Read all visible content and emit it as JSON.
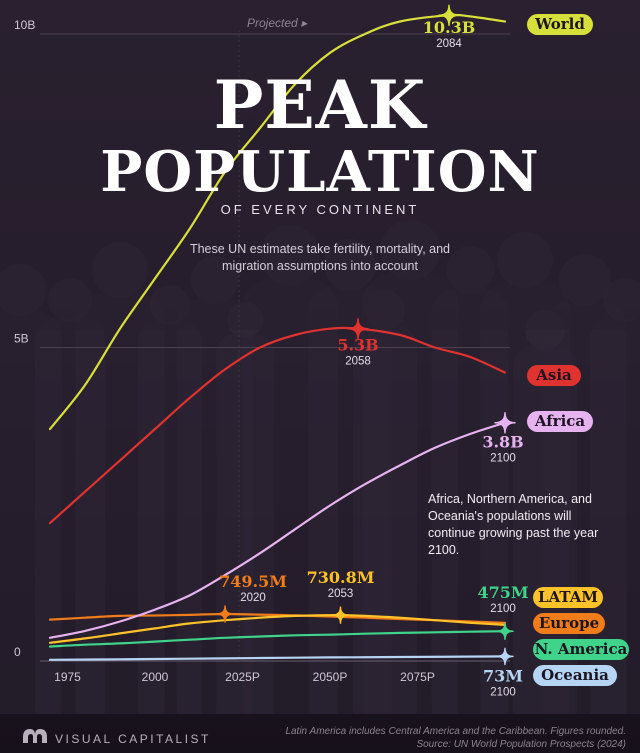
{
  "title": {
    "line1": "PEAK",
    "line2": "POPULATION",
    "line3": "OF EVERY CONTINENT"
  },
  "subtitle": "These UN estimates take fertility, mortality, and migration assumptions into account",
  "projected_label": "Projected ▸",
  "note": "Africa, Northern America, and Oceania's populations will continue growing past the year 2100.",
  "footer": {
    "brand": "VISUAL CAPITALIST",
    "source_note": "Latin America includes Central America and the Caribbean. Figures rounded.",
    "source": "Source: UN World Population Prospects (2024)"
  },
  "chart_data": {
    "type": "line",
    "x_ticks": [
      "1975",
      "2000",
      "2025P",
      "2050P",
      "2075P"
    ],
    "x_tick_values": [
      1975,
      2000,
      2025,
      2050,
      2075
    ],
    "y_ticks": [
      "0",
      "5B",
      "10B"
    ],
    "y_tick_values": [
      0,
      5,
      10
    ],
    "y_unit": "billions",
    "xlim": [
      1970,
      2100
    ],
    "ylim": [
      0,
      10.4
    ],
    "projection_start": 2024,
    "grid": "horizontal",
    "series": [
      {
        "name": "World",
        "color": "#d7e03a",
        "points": [
          [
            1970,
            3.7
          ],
          [
            1980,
            4.4
          ],
          [
            1990,
            5.3
          ],
          [
            2000,
            6.1
          ],
          [
            2010,
            6.9
          ],
          [
            2020,
            7.8
          ],
          [
            2030,
            8.5
          ],
          [
            2040,
            9.2
          ],
          [
            2050,
            9.7
          ],
          [
            2060,
            10.0
          ],
          [
            2070,
            10.2
          ],
          [
            2084,
            10.3
          ],
          [
            2090,
            10.28
          ],
          [
            2100,
            10.2
          ]
        ],
        "peak": {
          "value": "10.3B",
          "year": "2084",
          "x": 2084,
          "y": 10.3
        }
      },
      {
        "name": "Asia",
        "color": "#e0322f",
        "points": [
          [
            1970,
            2.2
          ],
          [
            1980,
            2.7
          ],
          [
            1990,
            3.2
          ],
          [
            2000,
            3.7
          ],
          [
            2010,
            4.2
          ],
          [
            2020,
            4.65
          ],
          [
            2030,
            5.0
          ],
          [
            2040,
            5.2
          ],
          [
            2050,
            5.3
          ],
          [
            2058,
            5.3
          ],
          [
            2070,
            5.2
          ],
          [
            2080,
            5.0
          ],
          [
            2090,
            4.85
          ],
          [
            2100,
            4.6
          ]
        ],
        "peak": {
          "value": "5.3B",
          "year": "2058",
          "x": 2058,
          "y": 5.3
        }
      },
      {
        "name": "Africa",
        "color": "#e6b3f0",
        "points": [
          [
            1970,
            0.37
          ],
          [
            1980,
            0.48
          ],
          [
            1990,
            0.63
          ],
          [
            2000,
            0.82
          ],
          [
            2010,
            1.05
          ],
          [
            2020,
            1.37
          ],
          [
            2030,
            1.72
          ],
          [
            2040,
            2.1
          ],
          [
            2050,
            2.48
          ],
          [
            2060,
            2.82
          ],
          [
            2070,
            3.12
          ],
          [
            2080,
            3.4
          ],
          [
            2090,
            3.62
          ],
          [
            2100,
            3.8
          ]
        ],
        "peak": {
          "value": "3.8B",
          "year": "2100",
          "x": 2100,
          "y": 3.8
        }
      },
      {
        "name": "LATAM",
        "color": "#ffc228",
        "points": [
          [
            1970,
            0.29
          ],
          [
            1980,
            0.36
          ],
          [
            1990,
            0.44
          ],
          [
            2000,
            0.52
          ],
          [
            2010,
            0.6
          ],
          [
            2020,
            0.65
          ],
          [
            2030,
            0.69
          ],
          [
            2040,
            0.72
          ],
          [
            2050,
            0.73
          ],
          [
            2053,
            0.7308
          ],
          [
            2060,
            0.72
          ],
          [
            2070,
            0.69
          ],
          [
            2080,
            0.65
          ],
          [
            2090,
            0.61
          ],
          [
            2100,
            0.575
          ]
        ],
        "peak": {
          "value": "730.8M",
          "year": "2053",
          "x": 2053,
          "y": 0.7308
        }
      },
      {
        "name": "Europe",
        "color": "#f07c1a",
        "points": [
          [
            1970,
            0.66
          ],
          [
            1980,
            0.69
          ],
          [
            1990,
            0.72
          ],
          [
            2000,
            0.726
          ],
          [
            2010,
            0.736
          ],
          [
            2020,
            0.7495
          ],
          [
            2030,
            0.74
          ],
          [
            2040,
            0.728
          ],
          [
            2050,
            0.71
          ],
          [
            2060,
            0.69
          ],
          [
            2070,
            0.67
          ],
          [
            2080,
            0.65
          ],
          [
            2090,
            0.63
          ],
          [
            2100,
            0.61
          ]
        ],
        "peak": {
          "value": "749.5M",
          "year": "2020",
          "x": 2020,
          "y": 0.7495
        }
      },
      {
        "name": "N. America",
        "color": "#3fd48a",
        "points": [
          [
            1970,
            0.23
          ],
          [
            1980,
            0.26
          ],
          [
            1990,
            0.28
          ],
          [
            2000,
            0.31
          ],
          [
            2010,
            0.34
          ],
          [
            2020,
            0.37
          ],
          [
            2030,
            0.39
          ],
          [
            2040,
            0.41
          ],
          [
            2050,
            0.42
          ],
          [
            2060,
            0.435
          ],
          [
            2070,
            0.448
          ],
          [
            2080,
            0.458
          ],
          [
            2090,
            0.467
          ],
          [
            2100,
            0.475
          ]
        ],
        "peak": {
          "value": "475M",
          "year": "2100",
          "x": 2100,
          "y": 0.475
        }
      },
      {
        "name": "Oceania",
        "color": "#b6d4f4",
        "points": [
          [
            1970,
            0.019
          ],
          [
            1990,
            0.027
          ],
          [
            2010,
            0.037
          ],
          [
            2030,
            0.048
          ],
          [
            2050,
            0.057
          ],
          [
            2070,
            0.064
          ],
          [
            2100,
            0.073
          ]
        ],
        "peak": {
          "value": "73M",
          "year": "2100",
          "x": 2100,
          "y": 0.073
        }
      }
    ]
  }
}
